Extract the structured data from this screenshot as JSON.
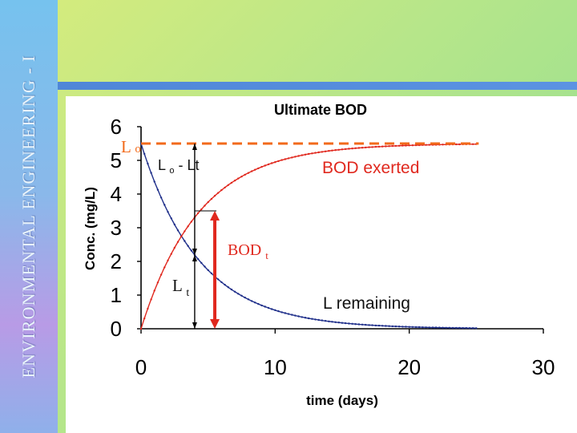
{
  "slide": {
    "sidebar_title": "ENVIRONMENTAL ENGINEERING - I"
  },
  "chart_data": {
    "type": "line",
    "title": "Ultimate BOD",
    "xlabel": "time (days)",
    "ylabel": "Conc. (mg/L)",
    "xlim": [
      0,
      30
    ],
    "ylim": [
      0,
      6
    ],
    "xticks": [
      0,
      10,
      20,
      30
    ],
    "yticks": [
      0,
      1,
      2,
      3,
      4,
      5,
      6
    ],
    "ultimate_bod": 5.5,
    "rate_constant_per_day": 0.23,
    "curve_t_max": 25,
    "series": [
      {
        "name": "L remaining",
        "color": "#1f2f8a",
        "x": [
          0,
          2,
          4,
          6,
          8,
          10,
          12,
          14,
          16,
          18,
          20,
          22,
          25
        ],
        "y": [
          5.5,
          3.47,
          2.19,
          1.38,
          0.87,
          0.55,
          0.35,
          0.22,
          0.14,
          0.09,
          0.06,
          0.03,
          0.02
        ]
      },
      {
        "name": "BOD exerted",
        "color": "#e0281e",
        "x": [
          0,
          2,
          4,
          6,
          8,
          10,
          12,
          14,
          16,
          18,
          20,
          22,
          25
        ],
        "y": [
          0,
          2.03,
          3.31,
          4.12,
          4.63,
          4.95,
          5.15,
          5.28,
          5.36,
          5.41,
          5.44,
          5.47,
          5.48
        ]
      }
    ],
    "reference_line": {
      "name": "Lo",
      "y": 5.5,
      "x_end": 25,
      "color": "#f26a1b"
    },
    "markers": {
      "t1": 4,
      "t2": 5.5,
      "bodt_top": 3.5
    },
    "annotations": {
      "lo": {
        "main": "L",
        "sub": "o"
      },
      "lo_minus_lt": {
        "main": "L",
        "sub": "o",
        "rest": "- Lt"
      },
      "bod_exerted": "BOD exerted",
      "bodt": {
        "main": "BOD",
        "sub": "t"
      },
      "lt": {
        "main": "L",
        "sub": "t"
      },
      "l_remaining": "L remaining"
    },
    "colors": {
      "bod_exerted_label": "#e0281e",
      "bodt_label": "#e0281e",
      "lo_label": "#f26a1b",
      "bodt_arrow": "#e0281e"
    }
  }
}
